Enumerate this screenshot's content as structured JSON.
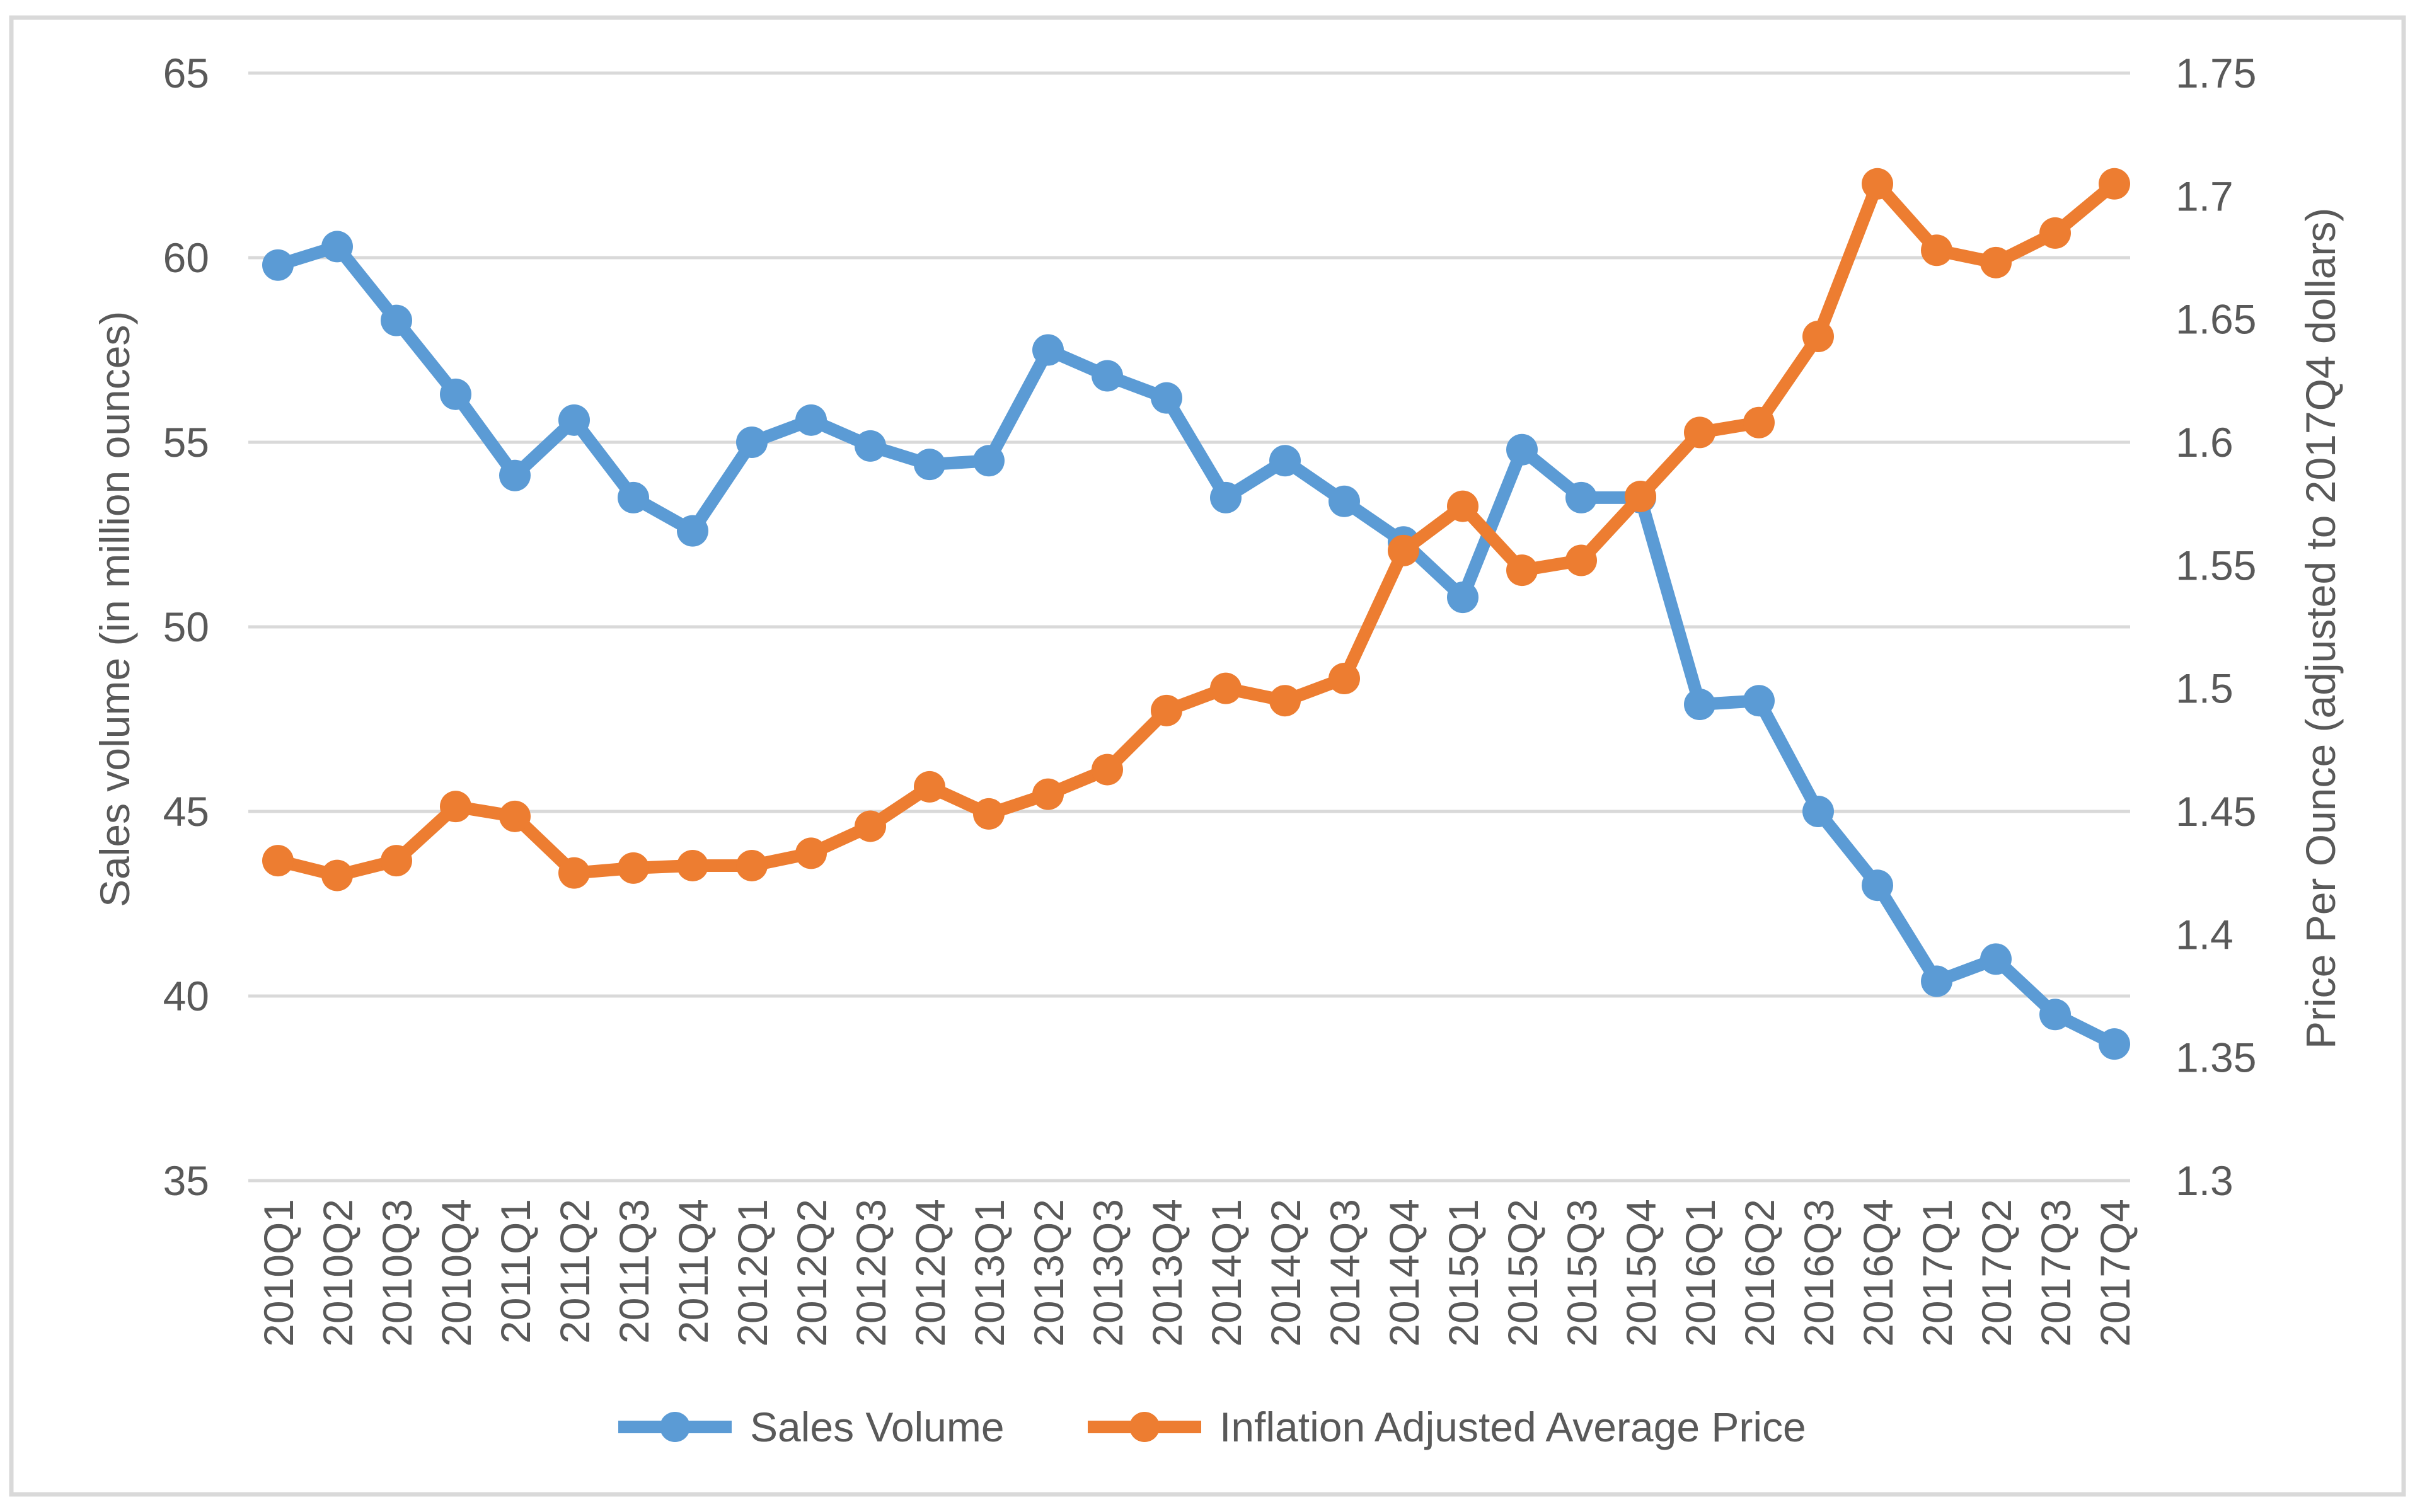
{
  "chart_data": {
    "type": "line",
    "categories": [
      "2010Q1",
      "2010Q2",
      "2010Q3",
      "2010Q4",
      "2011Q1",
      "2011Q2",
      "2011Q3",
      "2011Q4",
      "2012Q1",
      "2012Q2",
      "2012Q3",
      "2012Q4",
      "2013Q1",
      "2013Q2",
      "2013Q3",
      "2013Q4",
      "2014Q1",
      "2014Q2",
      "2014Q3",
      "2014Q4",
      "2015Q1",
      "2015Q2",
      "2015Q3",
      "2015Q4",
      "2016Q1",
      "2016Q2",
      "2016Q3",
      "2016Q4",
      "2017Q1",
      "2017Q2",
      "2017Q3",
      "2017Q4"
    ],
    "series": [
      {
        "id": "sales-volume",
        "name": "Sales Volume",
        "axis": "left",
        "color": "#5B9BD5",
        "values": [
          59.8,
          60.3,
          58.3,
          56.3,
          54.1,
          55.6,
          53.5,
          52.6,
          55.0,
          55.6,
          54.9,
          54.4,
          54.5,
          57.5,
          56.8,
          56.2,
          53.5,
          54.5,
          53.4,
          52.3,
          50.8,
          54.8,
          53.5,
          53.5,
          47.9,
          48.0,
          45.0,
          43.0,
          40.4,
          41.0,
          39.5,
          38.7
        ]
      },
      {
        "id": "inflation-adjusted-average-price",
        "name": "Inflation Adjusted Average Price",
        "axis": "right",
        "color": "#ED7D31",
        "values": [
          1.43,
          1.424,
          1.43,
          1.452,
          1.448,
          1.425,
          1.427,
          1.428,
          1.428,
          1.433,
          1.444,
          1.46,
          1.449,
          1.457,
          1.467,
          1.491,
          1.5,
          1.495,
          1.504,
          1.556,
          1.574,
          1.548,
          1.552,
          1.578,
          1.604,
          1.608,
          1.643,
          1.705,
          1.678,
          1.673,
          1.685,
          1.705
        ]
      }
    ],
    "left_axis": {
      "label": "Sales volume (in million ounces)",
      "min": 35,
      "max": 65,
      "step": 5,
      "tick_labels": [
        "65",
        "60",
        "55",
        "50",
        "45",
        "40",
        "35"
      ]
    },
    "right_axis": {
      "label": "Price Per Ounce (adjusted to 2017Q4 dollars)",
      "min": 1.3,
      "max": 1.75,
      "step": 0.05,
      "tick_labels": [
        "1.75",
        "1.7",
        "1.65",
        "1.6",
        "1.55",
        "1.5",
        "1.45",
        "1.4",
        "1.35",
        "1.3"
      ]
    },
    "legend_position": "bottom",
    "grid": true
  },
  "colors": {
    "text": "#595959",
    "gridline": "#D9D9D9",
    "frame_border": "#D9D9D9",
    "background": "#FFFFFF"
  }
}
